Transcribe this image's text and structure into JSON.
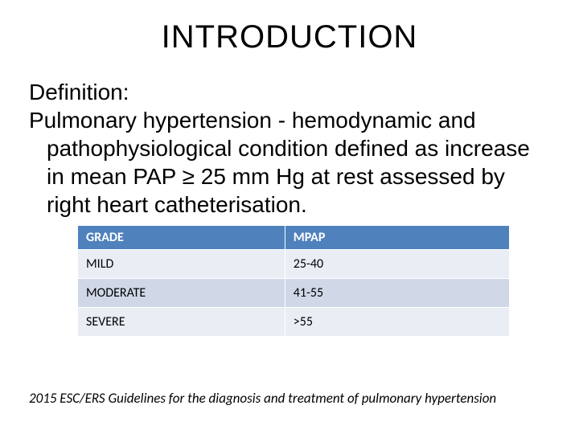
{
  "title": "INTRODUCTION",
  "definition": {
    "label": "Definition:",
    "body": "Pulmonary hypertension - hemodynamic and pathophysiological condition defined as increase in mean PAP ≥ 25 mm Hg at rest assessed by right heart catheterisation."
  },
  "table": {
    "header_bg": "#4f81bd",
    "header_fg": "#ffffff",
    "row_bg": "#e9edf4",
    "row_alt_bg": "#d0d8e8",
    "columns": [
      "GRADE",
      "MPAP"
    ],
    "rows": [
      [
        "MILD",
        "25-40"
      ],
      [
        "MODERATE",
        "41-55"
      ],
      [
        "SEVERE",
        ">55"
      ]
    ]
  },
  "footnote": "2015 ESC/ERS Guidelines for the diagnosis and treatment of pulmonary hypertension",
  "colors": {
    "background": "#ffffff",
    "text": "#000000"
  },
  "typography": {
    "title_fontsize": 40,
    "body_fontsize": 28,
    "table_fontsize": 16,
    "footnote_fontsize": 17
  }
}
